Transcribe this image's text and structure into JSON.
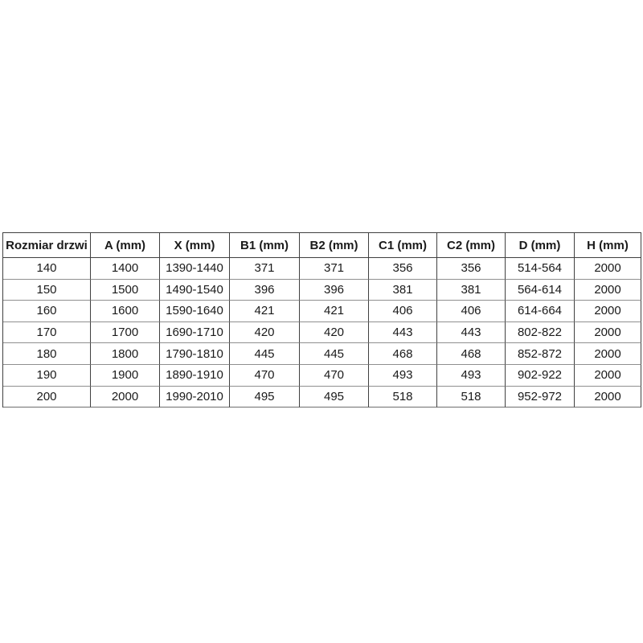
{
  "page": {
    "background": "#ffffff"
  },
  "table": {
    "title": "door-dimensions-specification",
    "colors": {
      "grid_dark": "#404040",
      "grid_light": "#8f8f8f",
      "grid_mid": "#6e6e6e",
      "text": "#1a1a1a",
      "cell_background": "#ffffff"
    },
    "columns": [
      "Rozmiar drzwi",
      "A (mm)",
      "X (mm)",
      "B1 (mm)",
      "B2 (mm)",
      "C1 (mm)",
      "C2 (mm)",
      "D (mm)",
      "H (mm)"
    ],
    "rows": [
      [
        "140",
        "1400",
        "1390-1440",
        "371",
        "371",
        "356",
        "356",
        "514-564",
        "2000"
      ],
      [
        "150",
        "1500",
        "1490-1540",
        "396",
        "396",
        "381",
        "381",
        "564-614",
        "2000"
      ],
      [
        "160",
        "1600",
        "1590-1640",
        "421",
        "421",
        "406",
        "406",
        "614-664",
        "2000"
      ],
      [
        "170",
        "1700",
        "1690-1710",
        "420",
        "420",
        "443",
        "443",
        "802-822",
        "2000"
      ],
      [
        "180",
        "1800",
        "1790-1810",
        "445",
        "445",
        "468",
        "468",
        "852-872",
        "2000"
      ],
      [
        "190",
        "1900",
        "1890-1910",
        "470",
        "470",
        "493",
        "493",
        "902-922",
        "2000"
      ],
      [
        "200",
        "2000",
        "1990-2010",
        "495",
        "495",
        "518",
        "518",
        "952-972",
        "2000"
      ]
    ]
  }
}
